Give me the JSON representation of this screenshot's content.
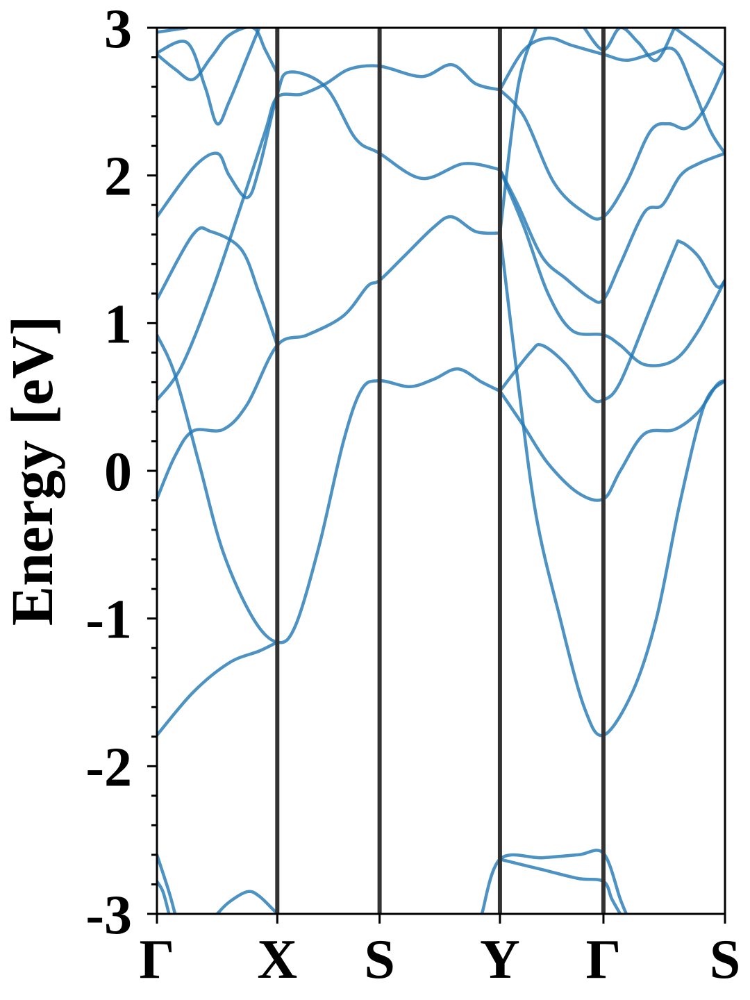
{
  "chart_data": {
    "type": "line",
    "ylabel": "Energy [eV]",
    "xlabel": "",
    "ylim": [
      -3,
      3
    ],
    "yticks": [
      "-3",
      "-2",
      "-1",
      "0",
      "1",
      "2",
      "3"
    ],
    "high_symmetry_points": [
      {
        "label": "Γ",
        "k": 0
      },
      {
        "label": "X",
        "k": 1
      },
      {
        "label": "S",
        "k": 1.85
      },
      {
        "label": "Y",
        "k": 2.85
      },
      {
        "label": "Γ",
        "k": 3.71
      },
      {
        "label": "S",
        "k": 4.72
      }
    ],
    "grid": false,
    "line_color": "#1f77b4",
    "divider_color": "#333333",
    "series": [
      {
        "values": [
          [
            0,
            -1.79
          ],
          [
            0.3,
            -1.5
          ],
          [
            0.6,
            -1.3
          ],
          [
            0.85,
            -1.22
          ],
          [
            1.0,
            -1.16
          ]
        ]
      },
      {
        "values": [
          [
            0,
            0.92
          ],
          [
            0.15,
            0.65
          ],
          [
            0.35,
            0.05
          ],
          [
            0.55,
            -0.55
          ],
          [
            0.8,
            -1.0
          ],
          [
            1.0,
            -1.16
          ],
          [
            1.15,
            -1.05
          ],
          [
            1.35,
            -0.5
          ],
          [
            1.55,
            0.2
          ],
          [
            1.7,
            0.55
          ],
          [
            1.85,
            0.61
          ],
          [
            2.1,
            0.57
          ],
          [
            2.3,
            0.62
          ],
          [
            2.5,
            0.69
          ],
          [
            2.7,
            0.6
          ],
          [
            2.85,
            0.54
          ]
        ]
      },
      {
        "values": [
          [
            0,
            -0.19
          ],
          [
            0.15,
            0.1
          ],
          [
            0.3,
            0.27
          ],
          [
            0.55,
            0.28
          ],
          [
            0.75,
            0.45
          ],
          [
            1.0,
            0.85
          ],
          [
            1.25,
            0.92
          ],
          [
            1.55,
            1.05
          ],
          [
            1.75,
            1.25
          ],
          [
            1.85,
            1.29
          ],
          [
            2.05,
            1.45
          ],
          [
            2.3,
            1.65
          ],
          [
            2.45,
            1.72
          ],
          [
            2.65,
            1.62
          ],
          [
            2.85,
            1.61
          ]
        ]
      },
      {
        "values": [
          [
            0,
            0.48
          ],
          [
            0.2,
            0.7
          ],
          [
            0.45,
            1.2
          ],
          [
            0.7,
            1.8
          ],
          [
            0.9,
            2.3
          ],
          [
            1.0,
            2.53
          ],
          [
            1.2,
            2.55
          ],
          [
            1.4,
            2.62
          ],
          [
            1.6,
            2.72
          ],
          [
            1.85,
            2.74
          ],
          [
            2.2,
            2.67
          ],
          [
            2.45,
            2.75
          ],
          [
            2.65,
            2.62
          ],
          [
            2.85,
            2.58
          ]
        ]
      },
      {
        "values": [
          [
            0,
            1.16
          ],
          [
            0.3,
            1.6
          ],
          [
            0.45,
            1.62
          ],
          [
            0.7,
            1.5
          ],
          [
            0.85,
            1.2
          ],
          [
            1.0,
            0.85
          ]
        ]
      },
      {
        "values": [
          [
            0,
            1.72
          ],
          [
            0.3,
            2.05
          ],
          [
            0.5,
            2.15
          ],
          [
            0.6,
            2.0
          ],
          [
            0.75,
            1.85
          ],
          [
            0.85,
            2.05
          ],
          [
            1.0,
            2.55
          ],
          [
            1.1,
            2.7
          ],
          [
            1.4,
            2.6
          ],
          [
            1.65,
            2.25
          ],
          [
            1.85,
            2.15
          ],
          [
            2.2,
            1.98
          ],
          [
            2.55,
            2.08
          ],
          [
            2.85,
            2.04
          ]
        ]
      },
      {
        "values": [
          [
            0,
            2.82
          ],
          [
            0.15,
            2.72
          ],
          [
            0.3,
            2.65
          ],
          [
            0.45,
            2.8
          ],
          [
            0.6,
            2.95
          ],
          [
            0.8,
            3.0
          ],
          [
            0.9,
            2.85
          ],
          [
            1.0,
            2.69
          ]
        ]
      },
      {
        "values": [
          [
            0,
            2.83
          ],
          [
            0.25,
            2.9
          ],
          [
            0.4,
            2.6
          ],
          [
            0.5,
            2.35
          ],
          [
            0.6,
            2.5
          ],
          [
            0.75,
            2.8
          ],
          [
            0.85,
            3.0
          ]
        ]
      },
      {
        "values": [
          [
            0,
            2.97
          ],
          [
            0.25,
            3.0
          ]
        ]
      },
      {
        "values": [
          [
            2.85,
            0.54
          ],
          [
            3.1,
            0.8
          ],
          [
            3.2,
            0.85
          ],
          [
            3.4,
            0.72
          ],
          [
            3.6,
            0.5
          ],
          [
            3.71,
            0.48
          ],
          [
            3.85,
            0.6
          ],
          [
            4.1,
            1.1
          ],
          [
            4.3,
            1.5
          ],
          [
            4.35,
            1.55
          ],
          [
            4.5,
            1.45
          ],
          [
            4.65,
            1.25
          ],
          [
            4.72,
            1.29
          ]
        ]
      },
      {
        "values": [
          [
            2.85,
            0.54
          ],
          [
            3.05,
            0.3
          ],
          [
            3.25,
            0.05
          ],
          [
            3.5,
            -0.15
          ],
          [
            3.71,
            -0.19
          ],
          [
            3.85,
            0.0
          ],
          [
            4.05,
            0.25
          ],
          [
            4.3,
            0.28
          ],
          [
            4.5,
            0.4
          ],
          [
            4.65,
            0.58
          ],
          [
            4.72,
            0.61
          ]
        ]
      },
      {
        "values": [
          [
            2.85,
            1.61
          ],
          [
            3.0,
            0.6
          ],
          [
            3.15,
            -0.3
          ],
          [
            3.35,
            -1.0
          ],
          [
            3.55,
            -1.6
          ],
          [
            3.71,
            -1.79
          ],
          [
            3.95,
            -1.5
          ],
          [
            4.15,
            -1.0
          ],
          [
            4.35,
            -0.2
          ],
          [
            4.55,
            0.45
          ],
          [
            4.72,
            0.61
          ]
        ]
      },
      {
        "values": [
          [
            2.85,
            2.04
          ],
          [
            3.0,
            1.8
          ],
          [
            3.2,
            1.45
          ],
          [
            3.4,
            1.3
          ],
          [
            3.6,
            1.17
          ],
          [
            3.71,
            1.16
          ],
          [
            3.85,
            1.4
          ],
          [
            4.05,
            1.75
          ],
          [
            4.2,
            1.8
          ],
          [
            4.35,
            2.0
          ],
          [
            4.5,
            2.08
          ],
          [
            4.72,
            2.15
          ]
        ]
      },
      {
        "values": [
          [
            2.85,
            2.58
          ],
          [
            3.05,
            2.4
          ],
          [
            3.3,
            1.95
          ],
          [
            3.55,
            1.75
          ],
          [
            3.71,
            1.72
          ],
          [
            3.9,
            1.95
          ],
          [
            4.1,
            2.3
          ],
          [
            4.25,
            2.35
          ],
          [
            4.4,
            2.32
          ],
          [
            4.55,
            2.45
          ],
          [
            4.72,
            2.74
          ]
        ]
      },
      {
        "values": [
          [
            2.85,
            2.04
          ],
          [
            3.05,
            1.65
          ],
          [
            3.25,
            1.2
          ],
          [
            3.45,
            0.95
          ],
          [
            3.71,
            0.92
          ],
          [
            3.85,
            0.85
          ],
          [
            4.05,
            0.72
          ],
          [
            4.3,
            0.75
          ],
          [
            4.5,
            0.95
          ],
          [
            4.72,
            1.29
          ]
        ]
      },
      {
        "values": [
          [
            2.85,
            1.61
          ],
          [
            3.0,
            2.6
          ],
          [
            3.15,
            3.0
          ]
        ]
      },
      {
        "values": [
          [
            2.85,
            2.58
          ],
          [
            3.05,
            2.85
          ],
          [
            3.25,
            2.93
          ],
          [
            3.45,
            2.88
          ],
          [
            3.71,
            2.82
          ],
          [
            3.9,
            2.78
          ],
          [
            4.1,
            2.82
          ],
          [
            4.3,
            2.85
          ],
          [
            4.45,
            2.6
          ],
          [
            4.6,
            2.3
          ],
          [
            4.72,
            2.15
          ]
        ]
      },
      {
        "values": [
          [
            3.55,
            3.0
          ],
          [
            3.71,
            2.85
          ],
          [
            3.85,
            3.0
          ],
          [
            4.0,
            2.9
          ],
          [
            4.15,
            2.78
          ],
          [
            4.3,
            3.0
          ]
        ]
      },
      {
        "values": [
          [
            4.3,
            3.0
          ],
          [
            4.5,
            2.88
          ],
          [
            4.72,
            2.74
          ]
        ]
      },
      {
        "values": [
          [
            2.7,
            -3.0
          ],
          [
            2.85,
            -2.63
          ],
          [
            3.2,
            -2.62
          ],
          [
            3.5,
            -2.6
          ],
          [
            3.71,
            -2.59
          ],
          [
            3.85,
            -2.9
          ],
          [
            3.9,
            -3.0
          ]
        ]
      },
      {
        "values": [
          [
            2.85,
            -2.63
          ],
          [
            3.2,
            -2.7
          ],
          [
            3.5,
            -2.76
          ],
          [
            3.71,
            -2.78
          ],
          [
            3.78,
            -2.9
          ],
          [
            3.85,
            -3.0
          ]
        ]
      },
      {
        "values": [
          [
            0,
            -2.6
          ],
          [
            0.1,
            -2.85
          ],
          [
            0.15,
            -3.0
          ]
        ]
      },
      {
        "values": [
          [
            0,
            -2.78
          ],
          [
            0.05,
            -2.85
          ],
          [
            0.1,
            -3.0
          ]
        ]
      },
      {
        "values": [
          [
            0.5,
            -3.0
          ],
          [
            0.6,
            -2.92
          ],
          [
            0.75,
            -2.85
          ],
          [
            0.85,
            -2.88
          ],
          [
            1.0,
            -3.0
          ]
        ]
      }
    ]
  }
}
